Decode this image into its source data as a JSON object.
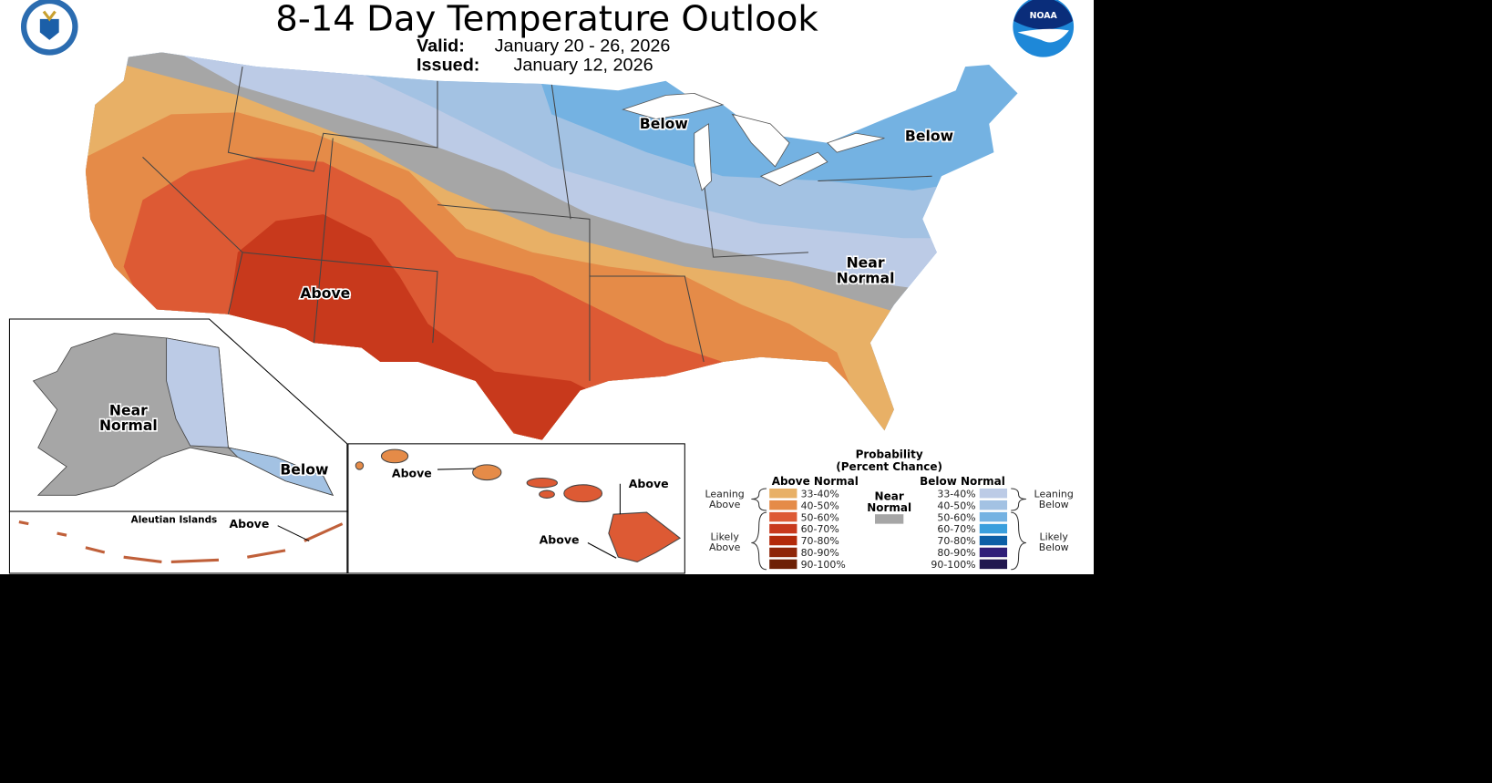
{
  "header": {
    "title": "8-14 Day Temperature Outlook",
    "valid_label": "Valid:",
    "valid_value": "January 20 - 26, 2026",
    "issued_label": "Issued:",
    "issued_value": "January 12, 2026",
    "left_logo": "department-of-commerce-seal",
    "right_logo": "noaa-logo",
    "right_logo_text": "NOAA"
  },
  "map_labels": {
    "conus_above": "Above",
    "conus_below_midwest": "Below",
    "conus_below_northeast": "Below",
    "conus_near_normal_1": "Near",
    "conus_near_normal_2": "Normal",
    "alaska_near_normal_1": "Near",
    "alaska_near_normal_2": "Normal",
    "alaska_below": "Below",
    "aleutian_title": "Aleutian Islands",
    "aleutian_above": "Above",
    "hawaii_above_1": "Above",
    "hawaii_above_2": "Above",
    "hawaii_above_3": "Above"
  },
  "legend": {
    "title_1": "Probability",
    "title_2": "(Percent Chance)",
    "above_header": "Above Normal",
    "below_header": "Below Normal",
    "near_1": "Near",
    "near_2": "Normal",
    "near_color": "#a6a6a6",
    "leaning_above_1": "Leaning",
    "leaning_above_2": "Above",
    "likely_above_1": "Likely",
    "likely_above_2": "Above",
    "leaning_below_1": "Leaning",
    "leaning_below_2": "Below",
    "likely_below_1": "Likely",
    "likely_below_2": "Below",
    "above": [
      {
        "range": "33-40%",
        "color": "#e8b066"
      },
      {
        "range": "40-50%",
        "color": "#e58b48"
      },
      {
        "range": "50-60%",
        "color": "#dd5a34"
      },
      {
        "range": "60-70%",
        "color": "#c8391c"
      },
      {
        "range": "70-80%",
        "color": "#b32a0a"
      },
      {
        "range": "80-90%",
        "color": "#8e2508"
      },
      {
        "range": "90-100%",
        "color": "#6e2005"
      }
    ],
    "below": [
      {
        "range": "33-40%",
        "color": "#bccbe6"
      },
      {
        "range": "40-50%",
        "color": "#a3c2e3"
      },
      {
        "range": "50-60%",
        "color": "#74b2e2"
      },
      {
        "range": "60-70%",
        "color": "#3a9fdd"
      },
      {
        "range": "70-80%",
        "color": "#0c5fa6"
      },
      {
        "range": "80-90%",
        "color": "#2f1f79"
      },
      {
        "range": "90-100%",
        "color": "#21184f"
      }
    ]
  }
}
